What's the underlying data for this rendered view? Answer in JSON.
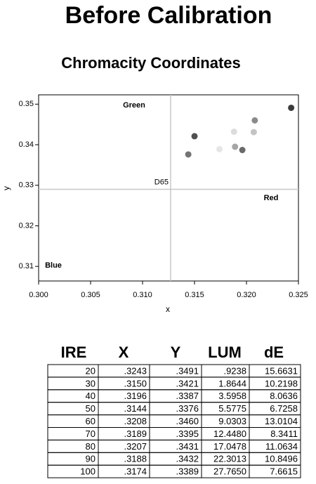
{
  "title": "Before Calibration",
  "chart_data": {
    "type": "scatter",
    "title": "Chromacity Coordinates",
    "x_label": "x",
    "y_label": "y",
    "x": [
      0.3243,
      0.315,
      0.3196,
      0.3144,
      0.3208,
      0.3189,
      0.3207,
      0.3188,
      0.3174
    ],
    "values": [
      0.3491,
      0.3421,
      0.3387,
      0.3376,
      0.346,
      0.3395,
      0.3431,
      0.3432,
      0.3389
    ],
    "colors": [
      "#3a3a3a",
      "#505050",
      "#6a6a6a",
      "#747474",
      "#8a8a8a",
      "#a5a5a5",
      "#c4c4c4",
      "#dcdcdc",
      "#e6e6e6"
    ],
    "xlim": [
      0.3,
      0.325
    ],
    "ylim": [
      0.3064,
      0.3523
    ],
    "xticks": [
      {
        "value": 0.3,
        "label": "0.300"
      },
      {
        "value": 0.305,
        "label": "0.305"
      },
      {
        "value": 0.31,
        "label": "0.310"
      },
      {
        "value": 0.315,
        "label": "0.315"
      },
      {
        "value": 0.32,
        "label": "0.320"
      },
      {
        "value": 0.325,
        "label": "0.325"
      }
    ],
    "yticks": [
      {
        "value": 0.31,
        "label": "0.31"
      },
      {
        "value": 0.32,
        "label": "0.32"
      },
      {
        "value": 0.33,
        "label": "0.33"
      },
      {
        "value": 0.34,
        "label": "0.34"
      },
      {
        "value": 0.35,
        "label": "0.35"
      }
    ],
    "reference": {
      "x": 0.3127,
      "y": 0.329,
      "label": "D65"
    },
    "annotations": [
      {
        "text": "Green",
        "color": "#0a8a0a"
      },
      {
        "text": "Red",
        "color": "#e01010"
      },
      {
        "text": "Blue",
        "color": "#1010c0"
      }
    ]
  },
  "table": {
    "header": [
      "IRE",
      "X",
      "Y",
      "LUM",
      "dE"
    ],
    "rows": [
      [
        "20",
        ".3243",
        ".3491",
        ".9238",
        "15.6631"
      ],
      [
        "30",
        ".3150",
        ".3421",
        "1.8644",
        "10.2198"
      ],
      [
        "40",
        ".3196",
        ".3387",
        "3.5958",
        "8.0636"
      ],
      [
        "50",
        ".3144",
        ".3376",
        "5.5775",
        "6.7258"
      ],
      [
        "60",
        ".3208",
        ".3460",
        "9.0303",
        "13.0104"
      ],
      [
        "70",
        ".3189",
        ".3395",
        "12.4480",
        "8.3411"
      ],
      [
        "80",
        ".3207",
        ".3431",
        "17.0478",
        "11.0634"
      ],
      [
        "90",
        ".3188",
        ".3432",
        "22.3013",
        "10.8496"
      ],
      [
        "100",
        ".3174",
        ".3389",
        "27.7650",
        "7.6615"
      ]
    ]
  }
}
